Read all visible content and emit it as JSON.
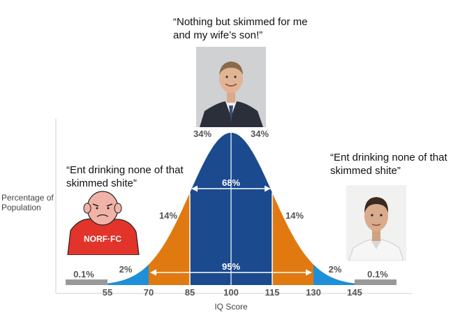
{
  "quotes": {
    "top": "“Nothing but skimmed for me and my wife’s son!”",
    "left": "“Ent drinking none of that skimmed shite”",
    "right": "“Ent drinking none of that skimmed shite”"
  },
  "cartoon_shirt_text": "NORF·FC",
  "chart_data": {
    "type": "area",
    "title": "",
    "xlabel": "IQ Score",
    "ylabel": "Percentage of Population",
    "x_ticks": [
      "55",
      "70",
      "85",
      "100",
      "115",
      "130",
      "145"
    ],
    "segments": [
      {
        "range": "<55",
        "label": "0.1%"
      },
      {
        "range": "55-70",
        "label": "2%"
      },
      {
        "range": "70-85",
        "label": "14%"
      },
      {
        "range": "85-100",
        "label": "34%"
      },
      {
        "range": "100-115",
        "label": "34%"
      },
      {
        "range": "115-130",
        "label": "14%"
      },
      {
        "range": "130-145",
        "label": "2%"
      },
      {
        "range": ">145",
        "label": "0.1%"
      }
    ],
    "intervals": [
      {
        "range": "85-115",
        "label": "68%"
      },
      {
        "range": "70-130",
        "label": "95%"
      }
    ],
    "colors": {
      "center": "#1b4a8e",
      "middle": "#e07a10",
      "outer": "#1f8fd8",
      "tail": "#999999"
    }
  }
}
